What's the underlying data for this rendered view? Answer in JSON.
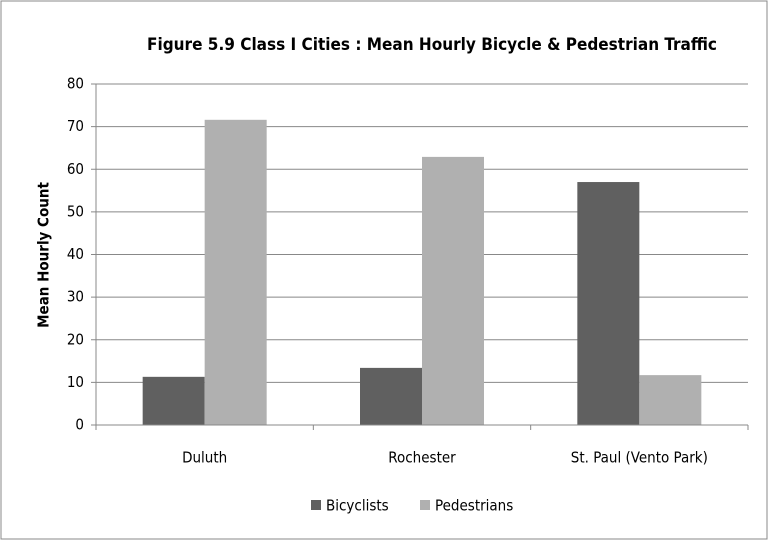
{
  "chart_data": {
    "type": "bar",
    "title": "Figure 5.9 Class I Cities : Mean Hourly Bicycle & Pedestrian Traffic",
    "y_label": "Mean Hourly Count",
    "categories": [
      "Duluth",
      "Rochester",
      "St. Paul (Vento Park)"
    ],
    "series": [
      {
        "name": "Bicyclists",
        "color": "#606060",
        "values": [
          11.3,
          13.4,
          57.0
        ]
      },
      {
        "name": "Pedestrians",
        "color": "#b0b0b0",
        "values": [
          71.6,
          62.9,
          11.7
        ]
      }
    ],
    "ylim": [
      0,
      80
    ],
    "yticks": [
      0,
      10,
      20,
      30,
      40,
      50,
      60,
      70,
      80
    ],
    "grid": true,
    "legend": "bottom"
  }
}
